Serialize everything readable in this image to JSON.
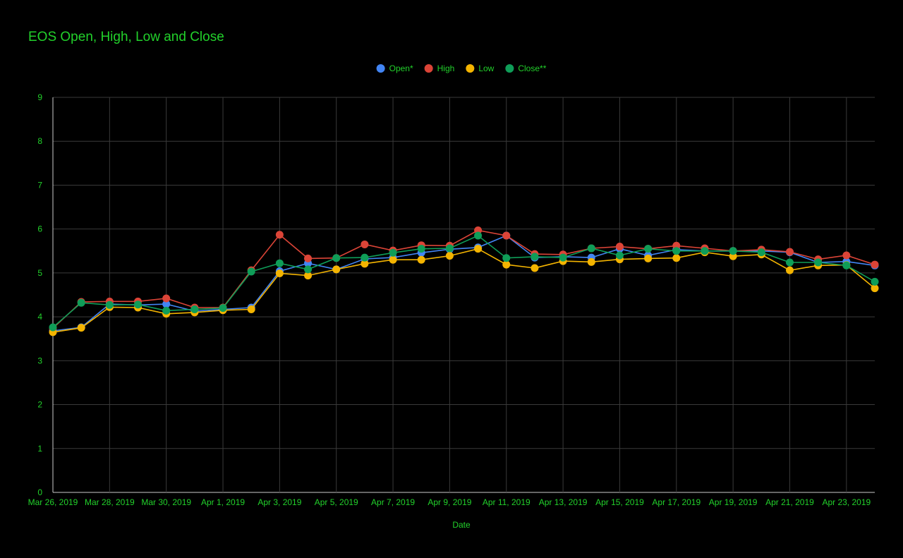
{
  "colors": {
    "background": "#000000",
    "text": "#22d12b",
    "grid": "#3a3a3a",
    "axis": "#cccccc",
    "open": "#4285f4",
    "high": "#db4437",
    "low": "#f4b400",
    "close": "#0f9d58"
  },
  "chart_data": {
    "type": "line",
    "title": "EOS Open, High, Low and Close",
    "xlabel": "Date",
    "ylabel": "",
    "ylim": [
      0,
      9
    ],
    "yticks": [
      0,
      1,
      2,
      3,
      4,
      5,
      6,
      7,
      8,
      9
    ],
    "grid": true,
    "legend_position": "top",
    "x": [
      "Mar 26, 2019",
      "Mar 27, 2019",
      "Mar 28, 2019",
      "Mar 29, 2019",
      "Mar 30, 2019",
      "Mar 31, 2019",
      "Apr 1, 2019",
      "Apr 2, 2019",
      "Apr 3, 2019",
      "Apr 4, 2019",
      "Apr 5, 2019",
      "Apr 6, 2019",
      "Apr 7, 2019",
      "Apr 8, 2019",
      "Apr 9, 2019",
      "Apr 10, 2019",
      "Apr 11, 2019",
      "Apr 12, 2019",
      "Apr 13, 2019",
      "Apr 14, 2019",
      "Apr 15, 2019",
      "Apr 16, 2019",
      "Apr 17, 2019",
      "Apr 18, 2019",
      "Apr 19, 2019",
      "Apr 20, 2019",
      "Apr 21, 2019",
      "Apr 22, 2019",
      "Apr 23, 2019",
      "Apr 24, 2019"
    ],
    "xtick_labels": [
      "Mar 26, 2019",
      "Mar 28, 2019",
      "Mar 30, 2019",
      "Apr 1, 2019",
      "Apr 3, 2019",
      "Apr 5, 2019",
      "Apr 7, 2019",
      "Apr 9, 2019",
      "Apr 11, 2019",
      "Apr 13, 2019",
      "Apr 15, 2019",
      "Apr 17, 2019",
      "Apr 19, 2019",
      "Apr 21, 2019",
      "Apr 23, 2019"
    ],
    "series": [
      {
        "name": "Open*",
        "color": "#4285f4",
        "values": [
          3.68,
          3.76,
          4.29,
          4.27,
          4.29,
          4.13,
          4.17,
          4.21,
          5.04,
          5.22,
          5.08,
          5.32,
          5.35,
          5.46,
          5.54,
          5.58,
          5.85,
          5.35,
          5.37,
          5.35,
          5.55,
          5.4,
          5.53,
          5.5,
          5.5,
          5.5,
          5.47,
          5.24,
          5.26,
          5.17
        ]
      },
      {
        "name": "High",
        "color": "#db4437",
        "values": [
          3.74,
          4.34,
          4.35,
          4.35,
          4.42,
          4.21,
          4.21,
          5.06,
          5.87,
          5.33,
          5.34,
          5.65,
          5.51,
          5.63,
          5.62,
          5.97,
          5.85,
          5.43,
          5.42,
          5.56,
          5.6,
          5.55,
          5.62,
          5.56,
          5.5,
          5.53,
          5.48,
          5.31,
          5.4,
          5.19
        ]
      },
      {
        "name": "Low",
        "color": "#f4b400",
        "values": [
          3.65,
          3.75,
          4.22,
          4.21,
          4.07,
          4.1,
          4.15,
          4.17,
          4.99,
          4.94,
          5.08,
          5.21,
          5.3,
          5.3,
          5.39,
          5.55,
          5.19,
          5.11,
          5.27,
          5.25,
          5.31,
          5.33,
          5.34,
          5.47,
          5.38,
          5.42,
          5.06,
          5.17,
          5.18,
          4.65
        ]
      },
      {
        "name": "Close**",
        "color": "#0f9d58",
        "values": [
          3.76,
          4.32,
          4.27,
          4.28,
          4.14,
          4.17,
          4.2,
          5.03,
          5.22,
          5.08,
          5.34,
          5.35,
          5.46,
          5.55,
          5.56,
          5.85,
          5.34,
          5.37,
          5.35,
          5.56,
          5.4,
          5.55,
          5.5,
          5.5,
          5.5,
          5.47,
          5.24,
          5.24,
          5.17,
          4.8
        ]
      }
    ]
  }
}
